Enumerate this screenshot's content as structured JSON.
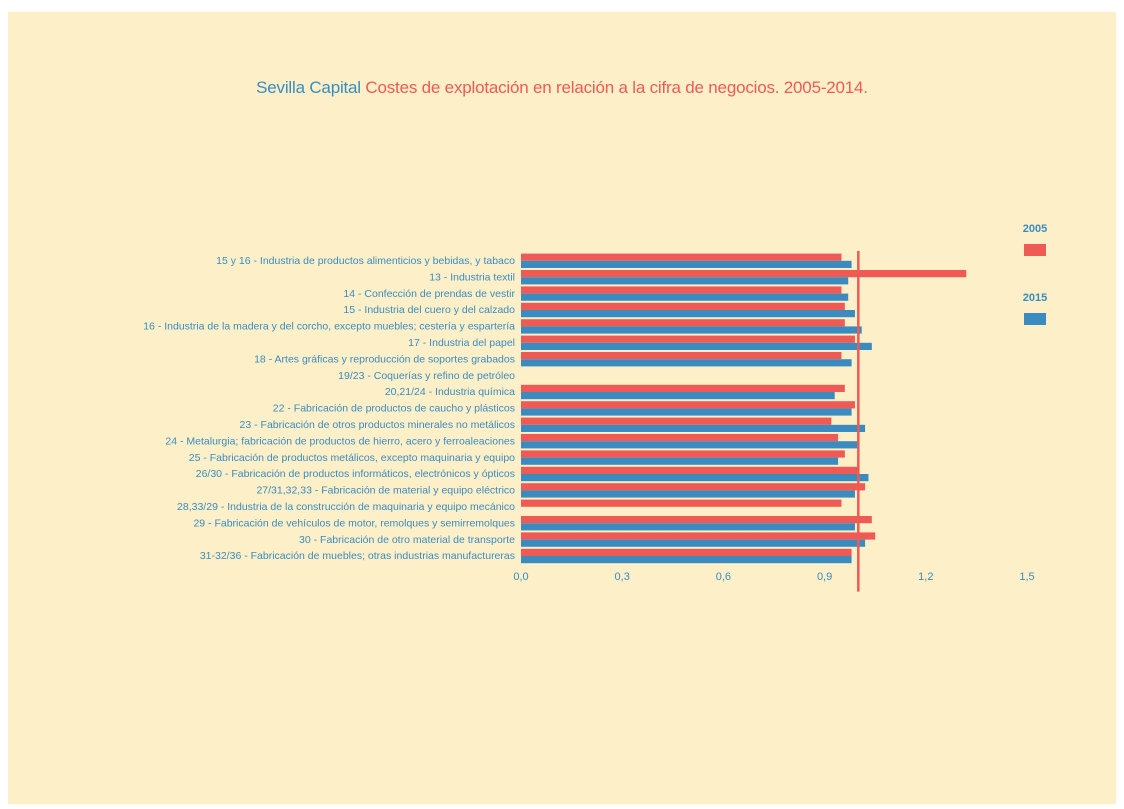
{
  "title_part1": "Sevilla Capital",
  "title_part2": "Costes de explotación en relación a la cifra de negocios. 2005-2014.",
  "colors": {
    "s2005": "#ef5a55",
    "s2015": "#3a8cc0",
    "reference": "#ef5a55",
    "background": "#fdefc8"
  },
  "chart_data": {
    "type": "bar",
    "orientation": "horizontal",
    "xlim": [
      0,
      1.5
    ],
    "x_ticks": [
      "0,0",
      "0,3",
      "0,6",
      "0,9",
      "1,2",
      "1,5"
    ],
    "x_tick_values": [
      0,
      0.3,
      0.6,
      0.9,
      1.2,
      1.5
    ],
    "reference_line": 1.0,
    "legend_placement": "right",
    "grid": false,
    "categories": [
      "15 y 16 - Industria de productos alimenticios y bebidas, y tabaco",
      "13 - Industria textil",
      "14 - Confección de prendas de vestir",
      "15 - Industria del cuero y del calzado",
      "16 - Industria de la madera y del corcho, excepto muebles; cestería y espartería",
      "17 - Industria del papel",
      "18 - Artes gráficas y reproducción de soportes grabados",
      "19/23 - Coquerías y refino de petróleo",
      "20,21/24 - Industria química",
      "22 - Fabricación de productos de caucho y plásticos",
      "23 - Fabricación de otros productos minerales no metálicos",
      "24 - Metalurgia; fabricación de productos de hierro, acero y ferroaleaciones",
      "25 - Fabricación de productos metálicos, excepto maquinaria y equipo",
      "26/30 - Fabricación de productos informáticos, electrónicos y ópticos",
      "27/31,32,33 - Fabricación de material y equipo eléctrico",
      "28,33/29 - Industria de la construcción de maquinaria y equipo mecánico",
      "29 - Fabricación de vehículos de motor, remolques y semirremolques",
      "30 - Fabricación de otro material de transporte",
      "31-32/36 - Fabricación de muebles; otras industrias manufactureras"
    ],
    "series": [
      {
        "name": "2005",
        "values": [
          0.95,
          1.32,
          0.95,
          0.96,
          0.96,
          0.99,
          0.95,
          null,
          0.96,
          0.99,
          0.92,
          0.94,
          0.96,
          1.0,
          1.02,
          0.95,
          1.04,
          1.05,
          0.98
        ]
      },
      {
        "name": "2015",
        "values": [
          0.98,
          0.97,
          0.97,
          0.99,
          1.01,
          1.04,
          0.98,
          null,
          0.93,
          0.98,
          1.02,
          1.0,
          0.94,
          1.03,
          0.99,
          null,
          0.99,
          1.02,
          0.98
        ]
      }
    ]
  }
}
